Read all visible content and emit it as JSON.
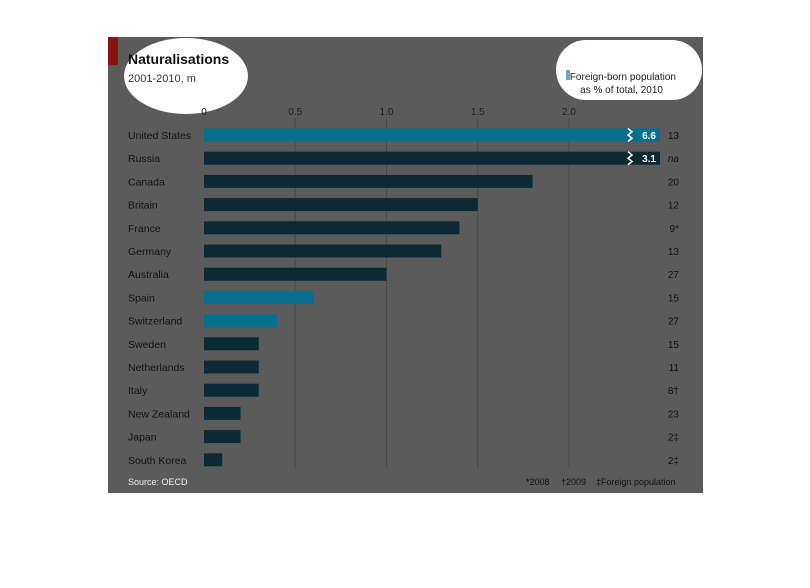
{
  "chart_data": {
    "type": "bar",
    "title": "Naturalisations",
    "subtitle": "2001-2010, m",
    "categories": [
      "United States",
      "Russia",
      "Canada",
      "Britain",
      "France",
      "Germany",
      "Australia",
      "Spain",
      "Switzerland",
      "Sweden",
      "Netherlands",
      "Italy",
      "New Zealand",
      "Japan",
      "South Korea"
    ],
    "values": [
      6.6,
      3.1,
      1.8,
      1.5,
      1.4,
      1.3,
      1.0,
      0.6,
      0.4,
      0.3,
      0.3,
      0.3,
      0.2,
      0.2,
      0.1
    ],
    "value_labels": [
      "6.6",
      "3.1",
      "",
      "",
      "",
      "",
      "",
      "",
      "",
      "",
      "",
      "",
      "",
      "",
      ""
    ],
    "xlim": [
      0,
      2.0
    ],
    "xticks": [
      "0",
      "0.5",
      "1.0",
      "1.5",
      "2.0"
    ],
    "truncated_bars": [
      "United States",
      "Russia"
    ],
    "highlighted": [
      "United States",
      "Spain",
      "Switzerland"
    ],
    "grid": true,
    "side_column": {
      "header_line1": "Foreign-born population",
      "header_line2": "as % of total, 2010",
      "values": [
        "13",
        "na",
        "20",
        "12",
        "9*",
        "13",
        "27",
        "15",
        "27",
        "15",
        "11",
        "8†",
        "23",
        "2‡",
        "2‡"
      ]
    },
    "source": "Source: OECD",
    "footnote_1": "*2008",
    "footnote_2": "†2009",
    "footnote_3": "‡Foreign population",
    "colors": {
      "panel": "#5b5b5b",
      "bar": "#0b2a33",
      "highlight": "#0a6f8e",
      "grid": "#4a4a4a",
      "accent": "#8a1414"
    }
  }
}
